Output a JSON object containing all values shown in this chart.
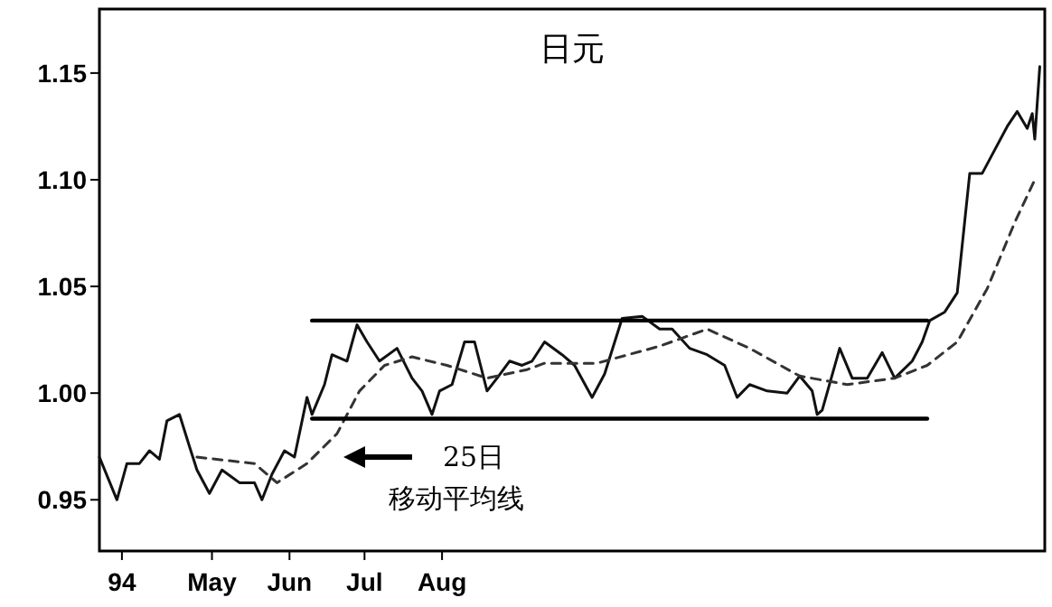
{
  "chart_data": {
    "type": "line",
    "title": "日元",
    "xlim": [
      "1994-04-01",
      "1995-04-14"
    ],
    "ylim": [
      0.926,
      1.18
    ],
    "xticks": [
      {
        "value": "1994-04-10",
        "label": "94"
      },
      {
        "value": "1994-05-16",
        "label": "May"
      },
      {
        "value": "1994-06-16",
        "label": "Jun"
      },
      {
        "value": "1994-07-16",
        "label": "Jul"
      },
      {
        "value": "1994-08-16",
        "label": "Aug"
      }
    ],
    "yticks": [
      {
        "value": 0.95,
        "label": "0.95"
      },
      {
        "value": 1.0,
        "label": "1.00"
      },
      {
        "value": 1.05,
        "label": "1.05"
      },
      {
        "value": 1.1,
        "label": "1.10"
      },
      {
        "value": 1.15,
        "label": "1.15"
      }
    ],
    "grid": false,
    "series": [
      {
        "color": "#111111",
        "line_style": "solid",
        "x": [
          "1994-04-01",
          "1994-04-08",
          "1994-04-12",
          "1994-04-17",
          "1994-04-21",
          "1994-04-25",
          "1994-04-28",
          "1994-05-03",
          "1994-05-07",
          "1994-05-10",
          "1994-05-15",
          "1994-05-20",
          "1994-05-27",
          "1994-06-02",
          "1994-06-05",
          "1994-06-09",
          "1994-06-14",
          "1994-06-18",
          "1994-06-23",
          "1994-06-25",
          "1994-06-30",
          "1994-07-03",
          "1994-07-09",
          "1994-07-13",
          "1994-07-17",
          "1994-07-22",
          "1994-07-29",
          "1994-08-04",
          "1994-08-08",
          "1994-08-12",
          "1994-08-15",
          "1994-08-20",
          "1994-08-25",
          "1994-08-29",
          "1994-09-03",
          "1994-09-07",
          "1994-09-12",
          "1994-09-17",
          "1994-09-21",
          "1994-09-26",
          "1994-10-03",
          "1994-10-08",
          "1994-10-15",
          "1994-10-20",
          "1994-10-27",
          "1994-11-04",
          "1994-11-11",
          "1994-11-16",
          "1994-11-23",
          "1994-11-30",
          "1994-12-07",
          "1994-12-12",
          "1994-12-17",
          "1994-12-24",
          "1995-01-01",
          "1995-01-06",
          "1995-01-11",
          "1995-01-13",
          "1995-01-15",
          "1995-01-22",
          "1995-01-27",
          "1995-02-02",
          "1995-02-08",
          "1995-02-13",
          "1995-02-20",
          "1995-02-24",
          "1995-02-27",
          "1995-03-05",
          "1995-03-10",
          "1995-03-15",
          "1995-03-20",
          "1995-03-25",
          "1995-03-30",
          "1995-04-03",
          "1995-04-07",
          "1995-04-09",
          "1995-04-10",
          "1995-04-12"
        ],
        "values": [
          0.97,
          0.95,
          0.967,
          0.967,
          0.973,
          0.969,
          0.987,
          0.99,
          0.975,
          0.964,
          0.953,
          0.964,
          0.958,
          0.958,
          0.95,
          0.962,
          0.973,
          0.97,
          0.998,
          0.99,
          1.004,
          1.018,
          1.015,
          1.032,
          1.024,
          1.015,
          1.021,
          1.007,
          1.001,
          0.99,
          1.001,
          1.004,
          1.024,
          1.024,
          1.001,
          1.007,
          1.015,
          1.013,
          1.015,
          1.024,
          1.018,
          1.013,
          0.998,
          1.009,
          1.035,
          1.036,
          1.03,
          1.03,
          1.021,
          1.018,
          1.013,
          0.998,
          1.004,
          1.001,
          1.0,
          1.008,
          1.001,
          0.99,
          0.992,
          1.021,
          1.007,
          1.007,
          1.019,
          1.007,
          1.015,
          1.024,
          1.034,
          1.038,
          1.047,
          1.103,
          1.103,
          1.114,
          1.125,
          1.132,
          1.124,
          1.131,
          1.119,
          1.153
        ]
      },
      {
        "color": "#333333",
        "line_style": "dashed",
        "x": [
          "1994-05-10",
          "1994-06-02",
          "1994-06-11",
          "1994-06-23",
          "1994-07-05",
          "1994-07-14",
          "1994-07-24",
          "1994-08-04",
          "1994-08-18",
          "1994-09-03",
          "1994-09-19",
          "1994-09-26",
          "1994-10-17",
          "1994-11-11",
          "1994-11-30",
          "1994-12-17",
          "1995-01-06",
          "1995-01-25",
          "1995-02-13",
          "1995-02-26",
          "1995-03-10",
          "1995-03-22",
          "1995-04-02",
          "1995-04-10"
        ],
        "values": [
          0.97,
          0.967,
          0.958,
          0.967,
          0.981,
          1.001,
          1.013,
          1.017,
          1.013,
          1.007,
          1.011,
          1.014,
          1.014,
          1.022,
          1.03,
          1.021,
          1.008,
          1.004,
          1.007,
          1.013,
          1.024,
          1.049,
          1.08,
          1.1
        ]
      },
      {
        "color": "#000000",
        "line_style": "solid",
        "x": [
          "1994-06-25",
          "1995-02-26"
        ],
        "values": [
          1.034,
          1.034
        ]
      },
      {
        "color": "#000000",
        "line_style": "solid",
        "x": [
          "1994-06-25",
          "1995-02-26"
        ],
        "values": [
          0.988,
          0.988
        ]
      }
    ],
    "annotations": [
      "25日",
      "移动平均线"
    ]
  }
}
